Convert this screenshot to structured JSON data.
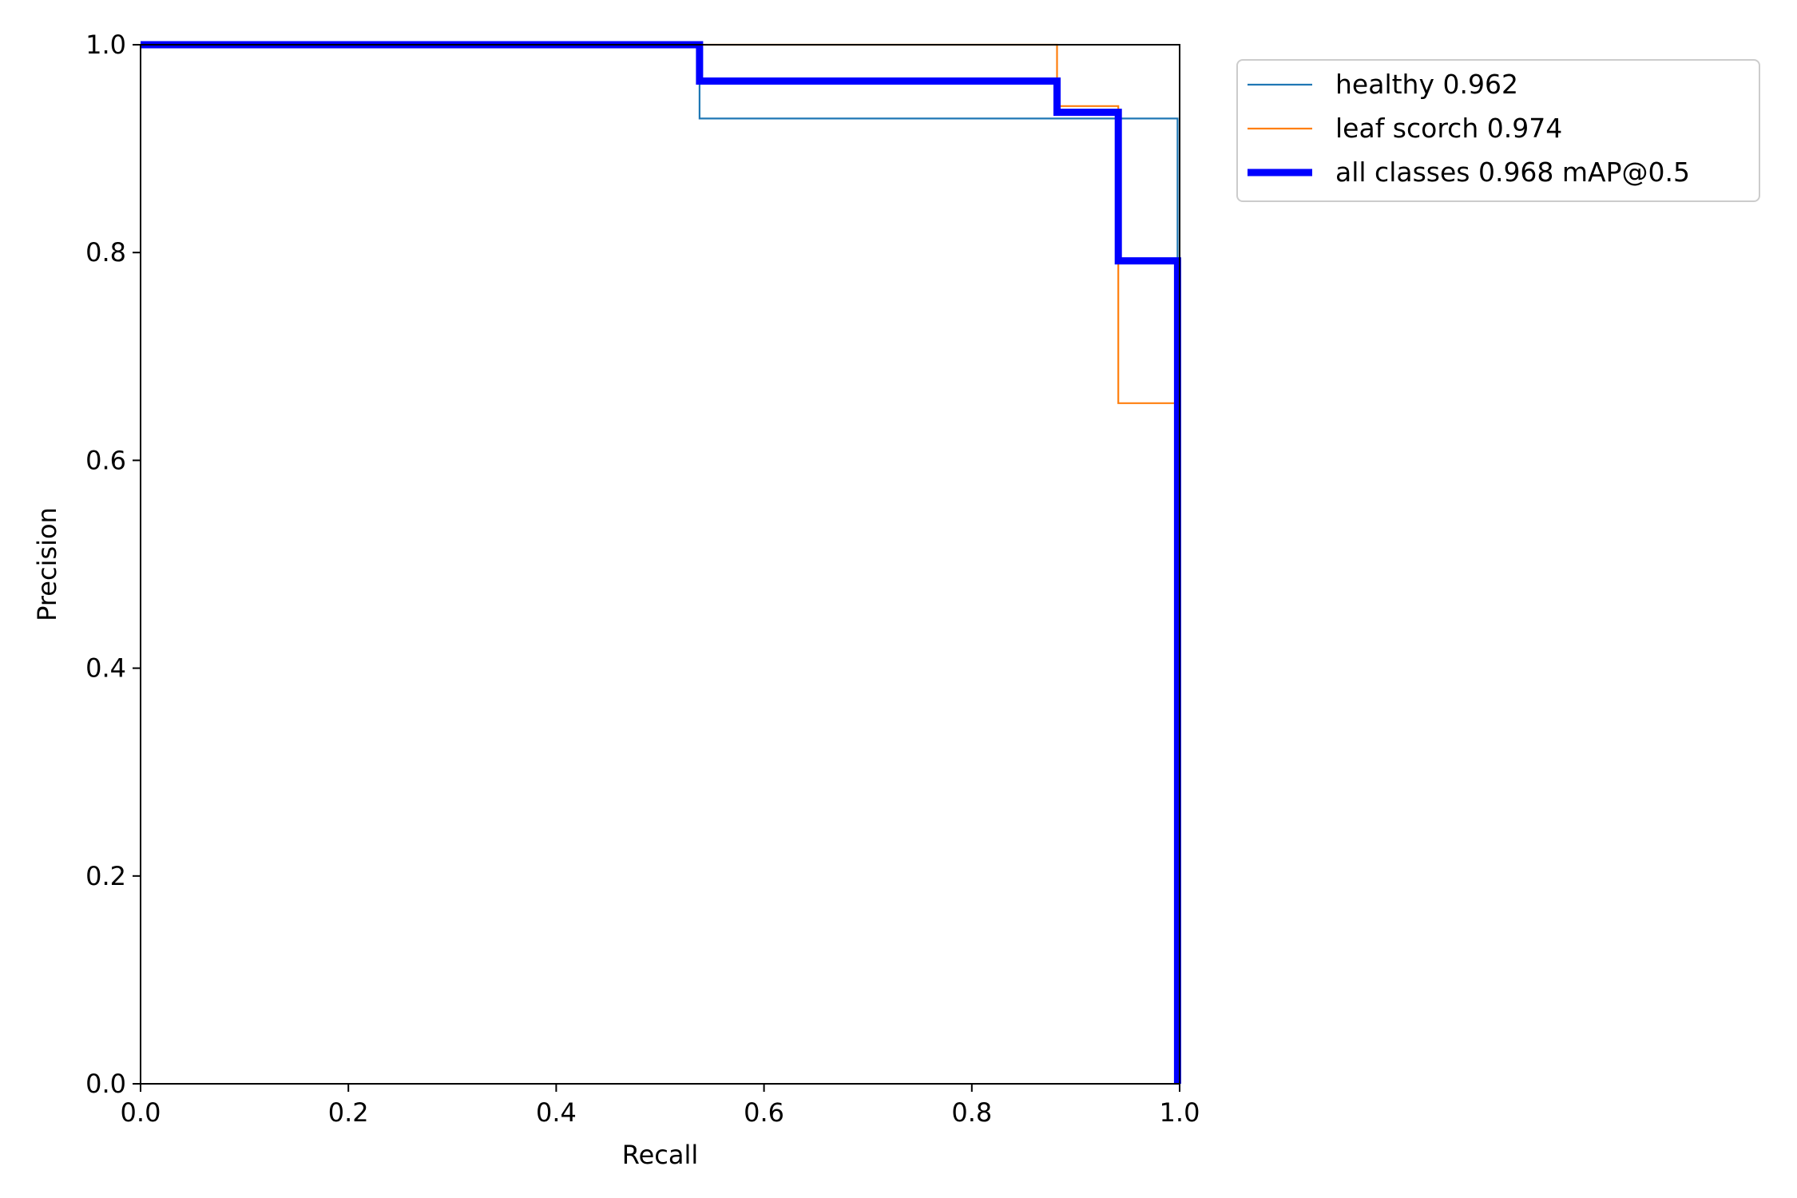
{
  "chart_data": {
    "type": "line",
    "title": "",
    "xlabel": "Recall",
    "ylabel": "Precision",
    "xlim": [
      0.0,
      1.0
    ],
    "ylim": [
      0.0,
      1.0
    ],
    "xticks": [
      "0.0",
      "0.2",
      "0.4",
      "0.6",
      "0.8",
      "1.0"
    ],
    "yticks": [
      "0.0",
      "0.2",
      "0.4",
      "0.6",
      "0.8",
      "1.0"
    ],
    "grid": false,
    "legend_position": "outside upper right",
    "series": [
      {
        "name": "healthy 0.962",
        "color": "#1f77b4",
        "line": "thin",
        "x": [
          0.0,
          0.538,
          0.538,
          0.998,
          0.998
        ],
        "y": [
          1.0,
          1.0,
          0.929,
          0.929,
          0.0
        ]
      },
      {
        "name": "leaf scorch 0.974",
        "color": "#ff7f0e",
        "line": "thin",
        "x": [
          0.0,
          0.882,
          0.882,
          0.941,
          0.941,
          0.996,
          0.996
        ],
        "y": [
          1.0,
          1.0,
          0.941,
          0.941,
          0.655,
          0.655,
          0.0
        ]
      },
      {
        "name": "all classes 0.968 mAP@0.5",
        "color": "#0000ff",
        "line": "thick",
        "x": [
          0.0,
          0.538,
          0.538,
          0.882,
          0.882,
          0.941,
          0.941,
          0.998,
          0.998
        ],
        "y": [
          1.0,
          1.0,
          0.965,
          0.965,
          0.935,
          0.935,
          0.792,
          0.792,
          0.0
        ]
      }
    ]
  }
}
